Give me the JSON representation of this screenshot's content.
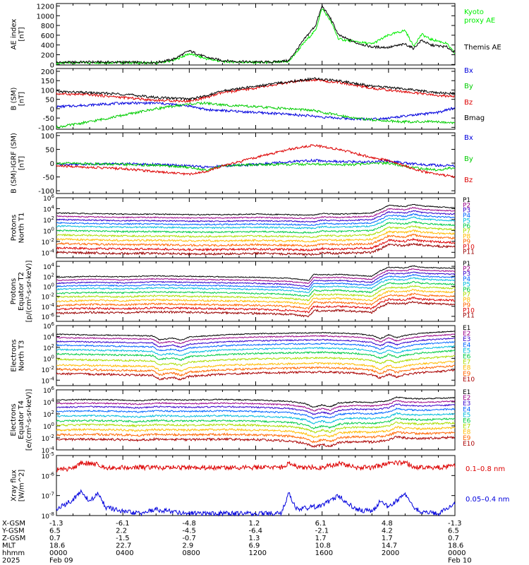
{
  "chart_data": [
    {
      "type": "line",
      "ylabel": [
        "AE index",
        "[nT]"
      ],
      "ylim": [
        -10,
        1250
      ],
      "yticks": [
        0,
        200,
        400,
        600,
        800,
        1000,
        1200
      ],
      "x": [
        0,
        2,
        4,
        6,
        7,
        8,
        9,
        10,
        11,
        12,
        13,
        14,
        15,
        15.6,
        16,
        16.5,
        17,
        18,
        19,
        20,
        21,
        21.5,
        22,
        22.5,
        23,
        23.5,
        24
      ],
      "series": [
        {
          "name": "Kyoto proxy AE",
          "color": "#00ee00",
          "values": [
            30,
            40,
            40,
            30,
            80,
            220,
            120,
            60,
            50,
            40,
            40,
            60,
            480,
            700,
            1150,
            900,
            520,
            470,
            420,
            600,
            700,
            380,
            620,
            520,
            480,
            430,
            220
          ]
        },
        {
          "name": "Themis AE",
          "color": "#000000",
          "values": [
            40,
            50,
            45,
            40,
            100,
            280,
            150,
            80,
            60,
            50,
            50,
            80,
            550,
            800,
            1200,
            950,
            600,
            450,
            360,
            350,
            420,
            330,
            500,
            400,
            380,
            360,
            250
          ]
        }
      ]
    },
    {
      "type": "line",
      "ylabel": [
        "B (SM)",
        "[nT]"
      ],
      "ylim": [
        -110,
        215
      ],
      "yticks": [
        -100,
        -50,
        0,
        50,
        100,
        150,
        200
      ],
      "x": [
        0,
        2,
        4,
        6,
        8,
        9,
        10,
        12,
        14,
        15.5,
        16,
        17,
        18,
        19,
        20,
        21,
        22,
        23,
        24
      ],
      "series": [
        {
          "name": "Bx",
          "color": "#0000dd",
          "values": [
            10,
            20,
            30,
            30,
            15,
            -5,
            -10,
            -20,
            -30,
            -40,
            -45,
            -50,
            -55,
            -55,
            -50,
            -40,
            -30,
            -20,
            5
          ]
        },
        {
          "name": "By",
          "color": "#00cc00",
          "values": [
            -100,
            -70,
            -35,
            0,
            25,
            30,
            20,
            10,
            0,
            -10,
            -20,
            -35,
            -50,
            -60,
            -65,
            -70,
            -70,
            -70,
            -75
          ]
        },
        {
          "name": "Bz",
          "color": "#dd0000",
          "values": [
            80,
            75,
            60,
            45,
            40,
            60,
            85,
            110,
            140,
            155,
            150,
            140,
            125,
            110,
            100,
            90,
            80,
            70,
            65
          ]
        },
        {
          "name": "Bmag",
          "color": "#000000",
          "values": [
            92,
            85,
            78,
            60,
            52,
            68,
            95,
            120,
            145,
            160,
            158,
            150,
            135,
            120,
            115,
            105,
            95,
            85,
            80
          ]
        }
      ]
    },
    {
      "type": "line",
      "ylabel": [
        "B (SM)-IGRF (SM)",
        "[nT]"
      ],
      "ylim": [
        -110,
        110
      ],
      "yticks": [
        -100,
        -50,
        0,
        50,
        100
      ],
      "x": [
        0,
        2,
        4,
        6,
        8,
        9,
        10,
        12,
        14,
        15.5,
        16,
        17,
        18,
        19,
        20,
        21,
        22,
        23,
        24
      ],
      "series": [
        {
          "name": "Bx",
          "color": "#0000dd",
          "values": [
            -5,
            -3,
            -2,
            -5,
            -10,
            -15,
            -10,
            -5,
            5,
            10,
            8,
            5,
            5,
            5,
            8,
            0,
            -5,
            -8,
            -10
          ]
        },
        {
          "name": "By",
          "color": "#00cc00",
          "values": [
            0,
            -2,
            -5,
            -8,
            -15,
            -25,
            -10,
            -5,
            -5,
            -3,
            -5,
            -5,
            -5,
            0,
            0,
            -10,
            -20,
            -25,
            -15
          ]
        },
        {
          "name": "Bz",
          "color": "#dd0000",
          "values": [
            -10,
            -15,
            -20,
            -30,
            -40,
            -30,
            -10,
            20,
            50,
            65,
            60,
            50,
            35,
            20,
            10,
            -10,
            -30,
            -40,
            -50
          ]
        }
      ]
    },
    {
      "type": "line",
      "log": true,
      "ylabel": [
        "Protons",
        "North T1"
      ],
      "ylim_exp": [
        -5,
        6
      ],
      "ytick_exps": [
        -4,
        -2,
        0,
        2,
        4,
        6
      ],
      "x": [
        0,
        2,
        4,
        6,
        8,
        10,
        12,
        14,
        15.5,
        16,
        17,
        18,
        19,
        19.5,
        20,
        21,
        21.5,
        22,
        23,
        24
      ],
      "base": [
        0,
        -0.1,
        -0.2,
        -0.2,
        -0.3,
        -0.3,
        -0.2,
        -0.3,
        -0.4,
        -0.1,
        -0.2,
        -0.1,
        0,
        0.6,
        1.4,
        1.2,
        1.6,
        1.3,
        1.1,
        1.0
      ],
      "series": [
        {
          "name": "P1",
          "color": "#000000",
          "offset": 3.2
        },
        {
          "name": "P2",
          "color": "#990088",
          "offset": 2.6
        },
        {
          "name": "P3",
          "color": "#3300cc",
          "offset": 2.0
        },
        {
          "name": "P4",
          "color": "#0066ff",
          "offset": 1.4
        },
        {
          "name": "P5",
          "color": "#00bbdd",
          "offset": 0.8
        },
        {
          "name": "P6",
          "color": "#00cc44",
          "offset": 0.0
        },
        {
          "name": "P7",
          "color": "#aadd00",
          "offset": -0.8
        },
        {
          "name": "P8",
          "color": "#ffbb00",
          "offset": -1.6
        },
        {
          "name": "P9",
          "color": "#ff6600",
          "offset": -2.4
        },
        {
          "name": "P10",
          "color": "#dd0000",
          "offset": -3.2
        },
        {
          "name": "P11",
          "color": "#990000",
          "offset": -4.0
        }
      ]
    },
    {
      "type": "line",
      "log": true,
      "ylabel": [
        "Protons",
        "Equator T2",
        "[p/(cm²-s-sr-keV)]"
      ],
      "ylim_exp": [
        -7,
        5
      ],
      "ytick_exps": [
        -6,
        -4,
        -2,
        0,
        2,
        4
      ],
      "x": [
        0,
        2,
        4,
        6,
        8,
        10,
        12,
        14,
        15.2,
        15.5,
        16,
        17,
        18,
        19,
        19.5,
        20,
        21,
        21.5,
        22,
        23,
        24
      ],
      "base": [
        0,
        0.2,
        0.1,
        0.3,
        0.2,
        0.1,
        0,
        -0.2,
        -0.6,
        0.6,
        0.5,
        0.6,
        0.4,
        0.2,
        1.3,
        2.0,
        1.9,
        2.3,
        2.0,
        1.9,
        1.8
      ],
      "series": [
        {
          "name": "P1",
          "color": "#000000",
          "offset": 1.8
        },
        {
          "name": "P2",
          "color": "#990088",
          "offset": 1.2
        },
        {
          "name": "P3",
          "color": "#3300cc",
          "offset": 0.6
        },
        {
          "name": "P4",
          "color": "#0066ff",
          "offset": 0.0
        },
        {
          "name": "P5",
          "color": "#00bbdd",
          "offset": -0.6
        },
        {
          "name": "P6",
          "color": "#00cc44",
          "offset": -1.4
        },
        {
          "name": "P7",
          "color": "#aadd00",
          "offset": -2.2
        },
        {
          "name": "P8",
          "color": "#ffbb00",
          "offset": -3.0
        },
        {
          "name": "P9",
          "color": "#ff6600",
          "offset": -3.8
        },
        {
          "name": "P10",
          "color": "#dd0000",
          "offset": -4.6
        },
        {
          "name": "P11",
          "color": "#990000",
          "offset": -5.4
        }
      ]
    },
    {
      "type": "line",
      "log": true,
      "ylabel": [
        "Electrons",
        "North T3"
      ],
      "ylim_exp": [
        -5,
        6
      ],
      "ytick_exps": [
        -4,
        -2,
        0,
        2,
        4,
        6
      ],
      "x": [
        0,
        2,
        4,
        5.8,
        6.2,
        7,
        7.5,
        8,
        9,
        10,
        12,
        14,
        16,
        17,
        18,
        19,
        19.5,
        20,
        20.5,
        21,
        22,
        23,
        24
      ],
      "base": [
        0,
        -0.1,
        -0.2,
        -0.3,
        -1.0,
        -0.7,
        -1.1,
        -0.5,
        -0.3,
        -0.1,
        0.1,
        0.2,
        0.3,
        0.2,
        0.1,
        -0.2,
        -0.8,
        -0.1,
        -0.6,
        -0.2,
        0.2,
        0.4,
        0.6
      ],
      "series": [
        {
          "name": "E1",
          "color": "#000000",
          "offset": 4.4
        },
        {
          "name": "E2",
          "color": "#990088",
          "offset": 3.8
        },
        {
          "name": "E3",
          "color": "#3300cc",
          "offset": 3.1
        },
        {
          "name": "E4",
          "color": "#0066ff",
          "offset": 2.4
        },
        {
          "name": "E5",
          "color": "#00bbdd",
          "offset": 1.6
        },
        {
          "name": "E6",
          "color": "#00cc44",
          "offset": 0.8
        },
        {
          "name": "E7",
          "color": "#aadd00",
          "offset": -0.2
        },
        {
          "name": "E8",
          "color": "#ffbb00",
          "offset": -1.2
        },
        {
          "name": "E9",
          "color": "#ff6600",
          "offset": -2.0
        },
        {
          "name": "E10",
          "color": "#aa0000",
          "offset": -2.8
        }
      ]
    },
    {
      "type": "line",
      "log": true,
      "ylabel": [
        "Electrons",
        "Equator T4",
        "[e/(cm²-s-sr-keV)]"
      ],
      "ylim_exp": [
        -4,
        6
      ],
      "ytick_exps": [
        -4,
        -2,
        0,
        2,
        4,
        6
      ],
      "x": [
        0,
        2,
        4,
        5,
        6,
        8,
        10,
        12,
        14,
        15,
        15.5,
        16,
        16.5,
        17,
        18,
        19,
        20,
        20.5,
        21,
        22,
        23,
        24
      ],
      "base": [
        0,
        0.1,
        0,
        -0.1,
        0.1,
        0,
        0.1,
        0,
        -0.2,
        -0.6,
        -1.2,
        -0.8,
        -1.1,
        -0.5,
        -0.3,
        -0.4,
        -0.1,
        0.5,
        0.3,
        0.2,
        0.3,
        0.4
      ],
      "series": [
        {
          "name": "E1",
          "color": "#000000",
          "offset": 4.3
        },
        {
          "name": "E2",
          "color": "#990088",
          "offset": 3.7
        },
        {
          "name": "E3",
          "color": "#3300cc",
          "offset": 3.1
        },
        {
          "name": "E4",
          "color": "#0066ff",
          "offset": 2.4
        },
        {
          "name": "E5",
          "color": "#00bbdd",
          "offset": 1.6
        },
        {
          "name": "E6",
          "color": "#00cc44",
          "offset": 0.8
        },
        {
          "name": "E7",
          "color": "#aadd00",
          "offset": 0.1
        },
        {
          "name": "E8",
          "color": "#ffbb00",
          "offset": -0.7
        },
        {
          "name": "E9",
          "color": "#ff6600",
          "offset": -1.5
        },
        {
          "name": "E10",
          "color": "#aa0000",
          "offset": -2.3
        }
      ]
    },
    {
      "type": "line",
      "log": true,
      "ylabel": [
        "Xray flux",
        "[W/m^2]"
      ],
      "ylim_exp": [
        -8,
        -5
      ],
      "ytick_exps": [
        -8,
        -7,
        -6,
        -5
      ],
      "x": [
        0,
        1,
        1.5,
        2,
        2.5,
        3,
        4,
        5,
        6,
        8,
        10,
        12,
        13.5,
        14,
        14.5,
        16,
        17,
        18,
        19,
        19.5,
        20,
        21,
        21.5,
        22,
        23,
        24
      ],
      "series": [
        {
          "name": "0.1–0.8 nm",
          "color": "#dd0000",
          "values": [
            -5.7,
            -5.65,
            -5.35,
            -5.4,
            -5.45,
            -5.6,
            -5.6,
            -5.6,
            -5.6,
            -5.6,
            -5.6,
            -5.6,
            -5.6,
            -5.4,
            -5.6,
            -5.6,
            -5.4,
            -5.6,
            -5.6,
            -5.5,
            -5.4,
            -5.35,
            -5.55,
            -5.6,
            -5.6,
            -5.5
          ]
        },
        {
          "name": "0.05–0.4 nm",
          "color": "#0000dd",
          "values": [
            -7.7,
            -7.2,
            -6.8,
            -7.3,
            -6.9,
            -7.6,
            -7.8,
            -7.9,
            -7.7,
            -7.9,
            -7.9,
            -7.9,
            -7.9,
            -6.9,
            -7.7,
            -7.5,
            -7.0,
            -7.7,
            -7.8,
            -7.3,
            -7.6,
            -6.9,
            -7.6,
            -7.8,
            -7.9,
            -7.4
          ]
        }
      ]
    }
  ],
  "right_labels": [
    {
      "lines": [
        {
          "text": "Kyoto",
          "color": "#00ee00"
        },
        {
          "text": "proxy AE",
          "color": "#00ee00"
        },
        {
          "text": "",
          "color": "#000000"
        },
        {
          "text": "Themis AE",
          "color": "#000000"
        }
      ]
    },
    {
      "lines": [
        {
          "text": "Bx",
          "color": "#0000dd"
        },
        {
          "text": "By",
          "color": "#00cc00"
        },
        {
          "text": "Bz",
          "color": "#dd0000"
        },
        {
          "text": "Bmag",
          "color": "#000000"
        }
      ]
    },
    {
      "lines": [
        {
          "text": "Bx",
          "color": "#0000dd"
        },
        {
          "text": "By",
          "color": "#00cc00"
        },
        {
          "text": "Bz",
          "color": "#dd0000"
        }
      ]
    }
  ],
  "xray_labels": [
    "0.1–0.8 nm",
    "0.05–0.4 nm"
  ],
  "x_axis": {
    "row_labels": [
      "X-GSM",
      "Y-GSM",
      "Z-GSM",
      "MLT",
      "hhmm",
      "2025"
    ],
    "columns": [
      [
        "-1.3",
        "6.5",
        "0.7",
        "18.6",
        "0000",
        "Feb 09"
      ],
      [
        "-6.1",
        "2.2",
        "-1.5",
        "22.7",
        "0400",
        ""
      ],
      [
        "-4.8",
        "-4.5",
        "-0.7",
        "2.9",
        "0800",
        ""
      ],
      [
        "1.2",
        "-6.4",
        "1.3",
        "6.9",
        "1200",
        ""
      ],
      [
        "6.1",
        "-2.1",
        "1.7",
        "10.8",
        "1600",
        ""
      ],
      [
        "4.8",
        "4.2",
        "1.7",
        "14.7",
        "2000",
        ""
      ],
      [
        "-1.3",
        "6.5",
        "0.7",
        "18.6",
        "0000",
        "Feb 10"
      ]
    ]
  }
}
